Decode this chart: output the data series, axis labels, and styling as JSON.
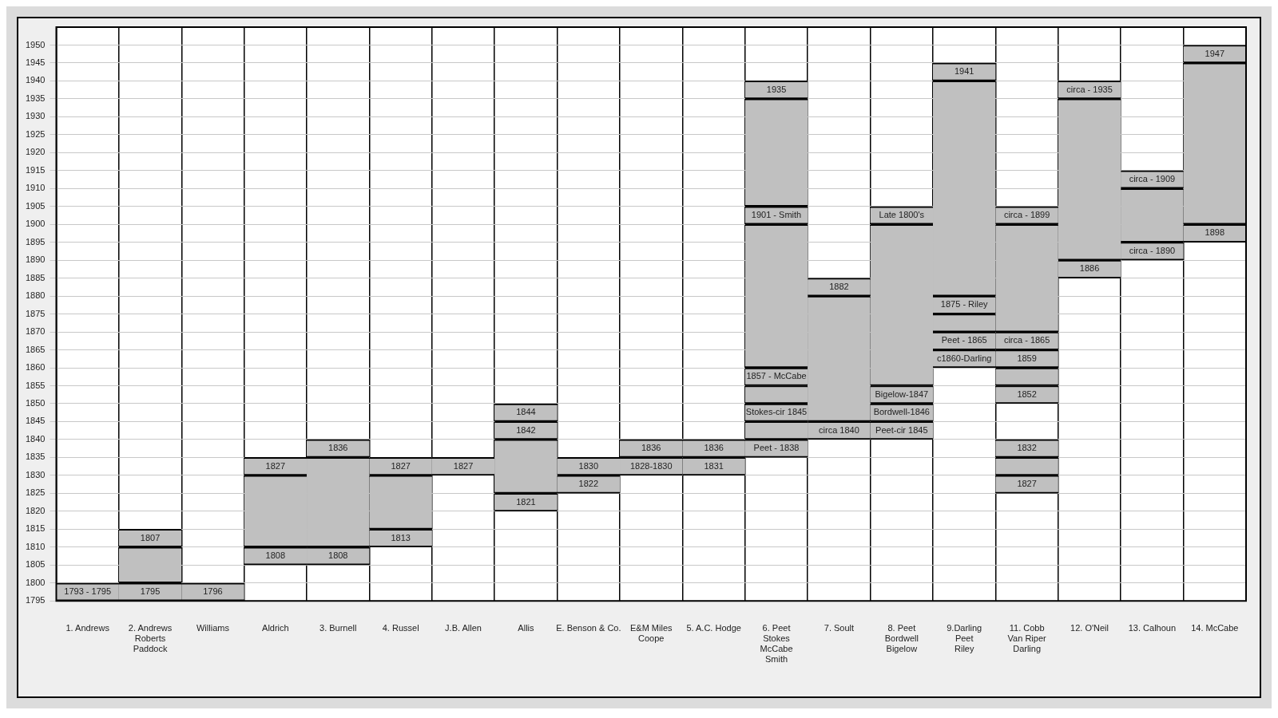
{
  "chart_data": {
    "type": "bar",
    "categories": [
      "1. Andrews",
      "2. Andrews\nRoberts\nPaddock",
      "Williams",
      "Aldrich",
      "3. Burnell",
      "4. Russel",
      "J.B. Allen",
      "Allis",
      "E. Benson & Co.",
      "E&M Miles\nCoope",
      "5. A.C. Hodge",
      "6. Peet\nStokes\nMcCabe\nSmith",
      "7. Soult",
      "8. Peet\nBordwell\nBigelow",
      "9.Darling\nPeet\nRiley",
      "11. Cobb\nVan Riper\nDarling",
      "12. O'Neil",
      "13. Calhoun",
      "14. McCabe"
    ],
    "series": [
      {
        "color": "#c0c0c0",
        "base": [
          1795,
          1795,
          1795,
          1805,
          1805,
          1810,
          1830,
          1820,
          1825,
          1830,
          1830,
          1835,
          1840,
          1840,
          1860,
          1825,
          1885,
          1890,
          1895
        ],
        "values": [
          5,
          5,
          5,
          5,
          5,
          5,
          5,
          5,
          5,
          5,
          5,
          5,
          5,
          5,
          5,
          5,
          5,
          5,
          5
        ]
      },
      {
        "color": "#c0c0c0",
        "base": [
          null,
          1800,
          null,
          1810,
          1810,
          1815,
          null,
          1825,
          1830,
          1835,
          1835,
          1840,
          1845,
          1845,
          1865,
          1830,
          1890,
          1895,
          1900
        ],
        "values": [
          null,
          10,
          null,
          20,
          25,
          15,
          null,
          15,
          5,
          5,
          5,
          5,
          35,
          5,
          5,
          5,
          45,
          15,
          45
        ]
      },
      {
        "color": "#c0c0c0",
        "base": [
          null,
          1810,
          null,
          1830,
          1835,
          1830,
          null,
          1840,
          null,
          null,
          null,
          1845,
          1880,
          1850,
          1870,
          1835,
          1935,
          1910,
          1945
        ],
        "values": [
          null,
          5,
          null,
          5,
          5,
          5,
          null,
          5,
          null,
          null,
          null,
          5,
          5,
          5,
          5,
          5,
          5,
          5,
          5
        ]
      },
      {
        "color": "#c0c0c0",
        "base": [
          null,
          null,
          null,
          null,
          null,
          null,
          null,
          1845,
          null,
          null,
          null,
          1850,
          null,
          1855,
          1875,
          1850,
          null,
          null,
          null
        ],
        "values": [
          null,
          null,
          null,
          null,
          null,
          null,
          null,
          5,
          null,
          null,
          null,
          5,
          null,
          45,
          5,
          5,
          null,
          null,
          null
        ]
      },
      {
        "color": "#c0c0c0",
        "base": [
          null,
          null,
          null,
          null,
          null,
          null,
          null,
          null,
          null,
          null,
          null,
          1855,
          null,
          1900,
          1880,
          1855,
          null,
          null,
          null
        ],
        "values": [
          null,
          null,
          null,
          null,
          null,
          null,
          null,
          null,
          null,
          null,
          null,
          5,
          null,
          5,
          60,
          5,
          null,
          null,
          null
        ]
      },
      {
        "color": "#c0c0c0",
        "base": [
          null,
          null,
          null,
          null,
          null,
          null,
          null,
          null,
          null,
          null,
          null,
          1860,
          null,
          null,
          1940,
          1860,
          null,
          null,
          null
        ],
        "values": [
          null,
          null,
          null,
          null,
          null,
          null,
          null,
          null,
          null,
          null,
          null,
          40,
          null,
          null,
          5,
          5,
          null,
          null,
          null
        ]
      },
      {
        "color": "#c0c0c0",
        "base": [
          null,
          null,
          null,
          null,
          null,
          null,
          null,
          null,
          null,
          null,
          null,
          1900,
          null,
          null,
          null,
          1865,
          null,
          null,
          null
        ],
        "values": [
          null,
          null,
          null,
          null,
          null,
          null,
          null,
          null,
          null,
          null,
          null,
          5,
          null,
          null,
          null,
          5,
          null,
          null,
          null
        ]
      },
      {
        "color": "#c0c0c0",
        "base": [
          null,
          null,
          null,
          null,
          null,
          null,
          null,
          null,
          null,
          null,
          null,
          1905,
          null,
          null,
          null,
          1870,
          null,
          null,
          null
        ],
        "values": [
          null,
          null,
          null,
          null,
          null,
          null,
          null,
          null,
          null,
          null,
          null,
          30,
          null,
          null,
          null,
          30,
          null,
          null,
          null
        ]
      },
      {
        "color": "#c0c0c0",
        "base": [
          null,
          null,
          null,
          null,
          null,
          null,
          null,
          null,
          null,
          null,
          null,
          1935,
          null,
          null,
          null,
          1900,
          null,
          null,
          null
        ],
        "values": [
          null,
          null,
          null,
          null,
          null,
          null,
          null,
          null,
          null,
          null,
          null,
          5,
          null,
          null,
          null,
          5,
          null,
          null,
          null
        ]
      }
    ],
    "ylim": [
      1795,
      1955
    ],
    "yticks": [
      1795,
      1800,
      1805,
      1810,
      1815,
      1820,
      1825,
      1830,
      1835,
      1840,
      1845,
      1850,
      1855,
      1860,
      1865,
      1870,
      1875,
      1880,
      1885,
      1890,
      1895,
      1900,
      1905,
      1910,
      1915,
      1920,
      1925,
      1930,
      1935,
      1940,
      1945,
      1950
    ],
    "grid": true,
    "annotations": [
      {
        "text": "1793 - 1795",
        "x": "1. Andrews",
        "y": 1795
      },
      {
        "text": "1807",
        "x": "2. Andrews\nRoberts\nPaddock",
        "y": 1810
      },
      {
        "text": "1795",
        "x": "2. Andrews\nRoberts\nPaddock",
        "y": 1795
      },
      {
        "text": "1796",
        "x": "Williams",
        "y": 1795
      },
      {
        "text": "1827",
        "x": "Aldrich",
        "y": 1830
      },
      {
        "text": "1808",
        "x": "Aldrich",
        "y": 1805
      },
      {
        "text": "1836",
        "x": "3. Burnell",
        "y": 1835
      },
      {
        "text": "1808",
        "x": "3. Burnell",
        "y": 1805
      },
      {
        "text": "1827",
        "x": "4. Russel",
        "y": 1830
      },
      {
        "text": "1813",
        "x": "4. Russel",
        "y": 1810
      },
      {
        "text": "1827",
        "x": "J.B. Allen",
        "y": 1830
      },
      {
        "text": "1844",
        "x": "Allis",
        "y": 1845
      },
      {
        "text": "1842",
        "x": "Allis",
        "y": 1840
      },
      {
        "text": "1821",
        "x": "Allis",
        "y": 1820
      },
      {
        "text": "1830",
        "x": "E. Benson & Co.",
        "y": 1830
      },
      {
        "text": "1822",
        "x": "E. Benson & Co.",
        "y": 1825
      },
      {
        "text": "1836",
        "x": "E&M Miles\nCoope",
        "y": 1835
      },
      {
        "text": "1828-1830",
        "x": "E&M Miles\nCoope",
        "y": 1830
      },
      {
        "text": "1836",
        "x": "5. A.C. Hodge",
        "y": 1835
      },
      {
        "text": "1831",
        "x": "5. A.C. Hodge",
        "y": 1830
      },
      {
        "text": "1935",
        "x": "6. Peet\nStokes\nMcCabe\nSmith",
        "y": 1935
      },
      {
        "text": "1901 - Smith",
        "x": "6. Peet\nStokes\nMcCabe\nSmith",
        "y": 1900
      },
      {
        "text": "1857 - McCabe",
        "x": "6. Peet\nStokes\nMcCabe\nSmith",
        "y": 1855
      },
      {
        "text": "Stokes-cir 1845",
        "x": "6. Peet\nStokes\nMcCabe\nSmith",
        "y": 1845
      },
      {
        "text": "Peet - 1838",
        "x": "6. Peet\nStokes\nMcCabe\nSmith",
        "y": 1835
      },
      {
        "text": "1882",
        "x": "7. Soult",
        "y": 1880
      },
      {
        "text": "circa 1840",
        "x": "7. Soult",
        "y": 1840
      },
      {
        "text": "Late 1800's",
        "x": "8. Peet\nBordwell\nBigelow",
        "y": 1900
      },
      {
        "text": "Bigelow-1847",
        "x": "8. Peet\nBordwell\nBigelow",
        "y": 1850
      },
      {
        "text": "Bordwell-1846",
        "x": "8. Peet\nBordwell\nBigelow",
        "y": 1845
      },
      {
        "text": "Peet-cir 1845",
        "x": "8. Peet\nBordwell\nBigelow",
        "y": 1840
      },
      {
        "text": "1941",
        "x": "9.Darling\nPeet\nRiley",
        "y": 1940
      },
      {
        "text": "1875 - Riley",
        "x": "9.Darling\nPeet\nRiley",
        "y": 1875
      },
      {
        "text": "Peet - 1865",
        "x": "9.Darling\nPeet\nRiley",
        "y": 1865
      },
      {
        "text": "c1860-Darling",
        "x": "9.Darling\nPeet\nRiley",
        "y": 1860
      },
      {
        "text": "circa - 1899",
        "x": "11. Cobb\nVan Riper\nDarling",
        "y": 1900
      },
      {
        "text": "circa - 1865",
        "x": "11. Cobb\nVan Riper\nDarling",
        "y": 1865
      },
      {
        "text": "1859",
        "x": "11. Cobb\nVan Riper\nDarling",
        "y": 1860
      },
      {
        "text": "1852",
        "x": "11. Cobb\nVan Riper\nDarling",
        "y": 1850
      },
      {
        "text": "1832",
        "x": "11. Cobb\nVan Riper\nDarling",
        "y": 1835
      },
      {
        "text": "1827",
        "x": "11. Cobb\nVan Riper\nDarling",
        "y": 1825
      },
      {
        "text": "circa - 1935",
        "x": "12. O'Neil",
        "y": 1935
      },
      {
        "text": "1886",
        "x": "12. O'Neil",
        "y": 1885
      },
      {
        "text": "circa - 1909",
        "x": "13. Calhoun",
        "y": 1910
      },
      {
        "text": "circa - 1890",
        "x": "13. Calhoun",
        "y": 1890
      },
      {
        "text": "1947",
        "x": "14. McCabe",
        "y": 1945
      },
      {
        "text": "1898",
        "x": "14. McCabe",
        "y": 1895
      }
    ]
  }
}
